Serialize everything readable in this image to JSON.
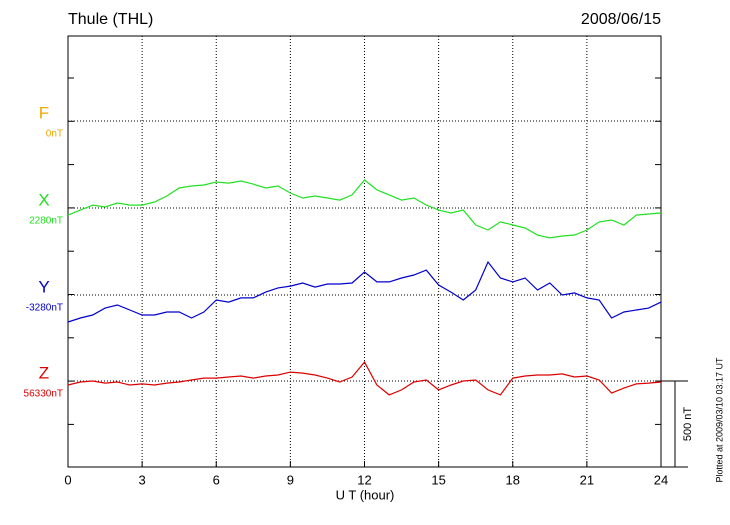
{
  "chart_data": {
    "type": "line",
    "title": "Thule (THL)",
    "date": "2008/06/15",
    "x_label": "U T (hour)",
    "footnote": "Plotted at 2009/03/10 03:17 UT",
    "scale_bar": {
      "value": 500,
      "label": "500 nT"
    },
    "xlim": [
      0,
      24
    ],
    "xticks": [
      0,
      3,
      6,
      9,
      12,
      15,
      18,
      21,
      24
    ],
    "grid": true,
    "x": [
      0,
      0.5,
      1,
      1.5,
      2,
      2.5,
      3,
      3.5,
      4,
      4.5,
      5,
      5.5,
      6,
      6.5,
      7,
      7.5,
      8,
      8.5,
      9,
      9.5,
      10,
      10.5,
      11,
      11.5,
      12,
      12.5,
      13,
      13.5,
      14,
      14.5,
      15,
      15.5,
      16,
      16.5,
      17,
      17.5,
      18,
      18.5,
      19,
      19.5,
      20,
      20.5,
      21,
      21.5,
      22,
      22.5,
      23,
      23.5,
      24
    ],
    "series": [
      {
        "name": "F",
        "color": "#f0a800",
        "baseline": {
          "value": 0,
          "label": "0nT"
        }
      },
      {
        "name": "X",
        "color": "#22e022",
        "baseline": {
          "value": 2280,
          "label": "2280nT"
        },
        "values": [
          2239,
          2268,
          2297,
          2286,
          2309,
          2297,
          2297,
          2315,
          2350,
          2396,
          2408,
          2414,
          2431,
          2425,
          2437,
          2419,
          2396,
          2408,
          2367,
          2338,
          2350,
          2338,
          2326,
          2356,
          2443,
          2385,
          2356,
          2326,
          2338,
          2297,
          2268,
          2251,
          2268,
          2181,
          2152,
          2199,
          2181,
          2164,
          2123,
          2106,
          2117,
          2123,
          2152,
          2199,
          2210,
          2181,
          2239,
          2245,
          2251
        ]
      },
      {
        "name": "Y",
        "color": "#0000cc",
        "baseline": {
          "value": -3280,
          "label": "-3280nT"
        },
        "values": [
          -3437,
          -3414,
          -3396,
          -3356,
          -3338,
          -3367,
          -3396,
          -3396,
          -3379,
          -3379,
          -3414,
          -3379,
          -3309,
          -3321,
          -3297,
          -3297,
          -3263,
          -3239,
          -3228,
          -3210,
          -3234,
          -3216,
          -3216,
          -3210,
          -3146,
          -3204,
          -3204,
          -3181,
          -3164,
          -3135,
          -3222,
          -3263,
          -3309,
          -3251,
          -3088,
          -3181,
          -3204,
          -3181,
          -3251,
          -3210,
          -3280,
          -3268,
          -3297,
          -3309,
          -3414,
          -3379,
          -3367,
          -3356,
          -3321
        ]
      },
      {
        "name": "Z",
        "color": "#dd0000",
        "baseline": {
          "value": 56330,
          "label": "56330nT"
        },
        "values": [
          56307,
          56324,
          56330,
          56318,
          56324,
          56307,
          56313,
          56307,
          56318,
          56324,
          56336,
          56347,
          56347,
          56353,
          56359,
          56347,
          56359,
          56365,
          56382,
          56376,
          56365,
          56347,
          56324,
          56353,
          56440,
          56307,
          56249,
          56278,
          56324,
          56336,
          56278,
          56307,
          56330,
          56336,
          56278,
          56249,
          56347,
          56359,
          56365,
          56365,
          56371,
          56353,
          56359,
          56336,
          56260,
          56289,
          56313,
          56318,
          56324
        ]
      }
    ]
  }
}
